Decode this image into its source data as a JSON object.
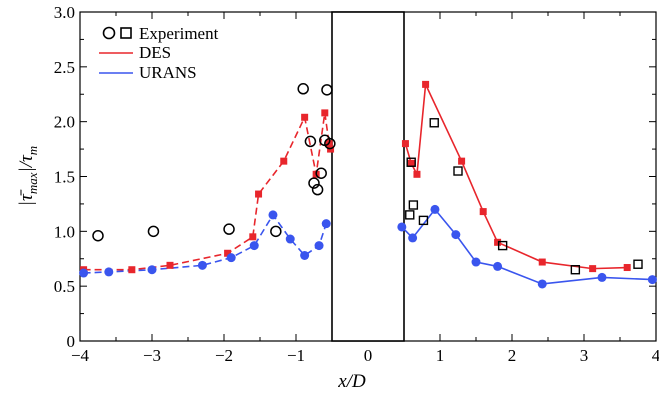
{
  "chart_data": {
    "type": "scatter",
    "xlabel": "x/D",
    "ylabel": "|τ̄max|/τm",
    "ylabel_parts": {
      "main": "|τ̄",
      "sub1": "max",
      "mid": "|/τ",
      "sub2": "m"
    },
    "xlim": [
      -4,
      4
    ],
    "ylim": [
      0,
      3
    ],
    "x_ticks": [
      "−4",
      "−3",
      "−2",
      "−1",
      "0",
      "1",
      "2",
      "3",
      "4"
    ],
    "y_ticks": [
      "0",
      "0.5",
      "1.0",
      "1.5",
      "2.0",
      "2.5",
      "3.0"
    ],
    "x_tick_values": [
      -4,
      -3,
      -2,
      -1,
      0,
      1,
      2,
      3,
      4
    ],
    "y_tick_values": [
      0,
      0.5,
      1.0,
      1.5,
      2.0,
      2.5,
      3.0
    ],
    "cylinder": {
      "x_range": [
        -0.5,
        0.5
      ],
      "top": 3.0
    },
    "legend": {
      "position": "top-left",
      "entries": [
        "Experiment",
        "DES",
        "URANS"
      ]
    },
    "colors": {
      "DES": "#e8262c",
      "URANS": "#3a55ee",
      "Experiment": "#000000"
    },
    "series": [
      {
        "name": "DES",
        "marker": "square",
        "upstream": [
          [
            -3.95,
            0.65
          ],
          [
            -3.28,
            0.65
          ],
          [
            -2.75,
            0.69
          ],
          [
            -1.95,
            0.8
          ],
          [
            -1.6,
            0.95
          ],
          [
            -1.52,
            1.34
          ],
          [
            -1.17,
            1.64
          ],
          [
            -0.88,
            2.04
          ],
          [
            -0.72,
            1.52
          ],
          [
            -0.6,
            2.08
          ],
          [
            -0.54,
            1.8
          ],
          [
            -0.52,
            1.75
          ]
        ],
        "downstream": [
          [
            0.52,
            1.8
          ],
          [
            0.6,
            1.62
          ],
          [
            0.68,
            1.52
          ],
          [
            0.8,
            2.34
          ],
          [
            1.3,
            1.64
          ],
          [
            1.6,
            1.18
          ],
          [
            1.8,
            0.9
          ],
          [
            2.42,
            0.72
          ],
          [
            3.12,
            0.66
          ],
          [
            3.6,
            0.67
          ]
        ]
      },
      {
        "name": "URANS",
        "marker": "circle",
        "upstream": [
          [
            -3.95,
            0.62
          ],
          [
            -3.6,
            0.63
          ],
          [
            -3.0,
            0.65
          ],
          [
            -2.3,
            0.69
          ],
          [
            -1.9,
            0.76
          ],
          [
            -1.58,
            0.87
          ],
          [
            -1.32,
            1.15
          ],
          [
            -1.08,
            0.93
          ],
          [
            -0.88,
            0.78
          ],
          [
            -0.68,
            0.87
          ],
          [
            -0.58,
            1.07
          ]
        ],
        "downstream": [
          [
            0.47,
            1.04
          ],
          [
            0.62,
            0.94
          ],
          [
            0.93,
            1.2
          ],
          [
            1.22,
            0.97
          ],
          [
            1.5,
            0.72
          ],
          [
            1.8,
            0.68
          ],
          [
            2.42,
            0.52
          ],
          [
            3.25,
            0.58
          ],
          [
            3.95,
            0.56
          ]
        ]
      },
      {
        "name": "Experiment",
        "upstream_marker": "circle",
        "downstream_marker": "square",
        "upstream": [
          [
            -3.75,
            0.96
          ],
          [
            -2.98,
            1.0
          ],
          [
            -1.93,
            1.02
          ],
          [
            -1.28,
            1.0
          ],
          [
            -0.9,
            2.3
          ],
          [
            -0.8,
            1.82
          ],
          [
            -0.75,
            1.44
          ],
          [
            -0.7,
            1.38
          ],
          [
            -0.65,
            1.53
          ],
          [
            -0.6,
            1.83
          ],
          [
            -0.57,
            2.29
          ],
          [
            -0.53,
            1.8
          ]
        ],
        "downstream": [
          [
            0.6,
            1.63
          ],
          [
            0.58,
            1.15
          ],
          [
            0.63,
            1.24
          ],
          [
            0.77,
            1.1
          ],
          [
            0.92,
            1.99
          ],
          [
            1.25,
            1.55
          ],
          [
            1.87,
            0.87
          ],
          [
            2.88,
            0.65
          ],
          [
            3.75,
            0.7
          ]
        ]
      }
    ]
  }
}
